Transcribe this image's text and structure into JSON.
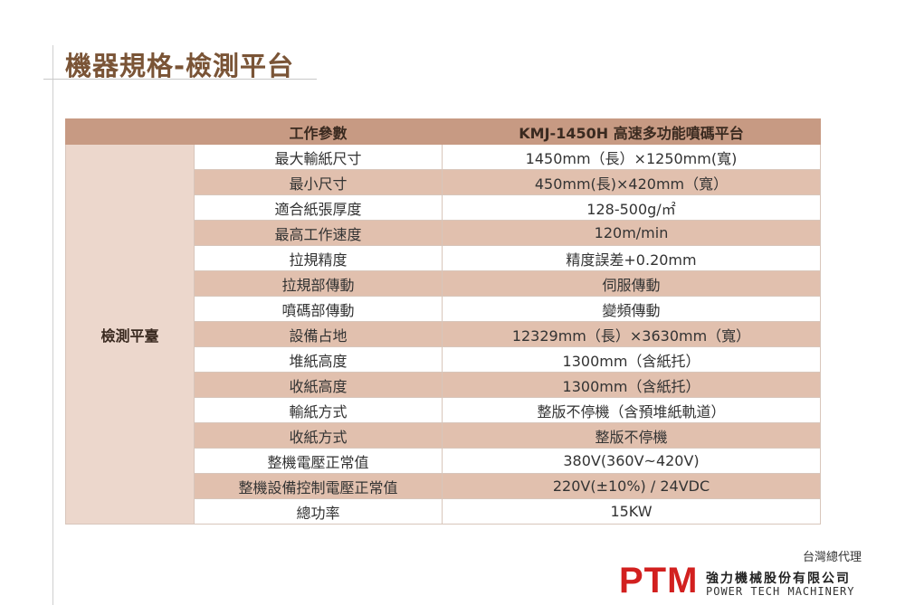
{
  "page": {
    "title": "機器規格-檢測平台"
  },
  "table": {
    "headers": [
      "",
      "工作參數",
      "KMJ-1450H 高速多功能噴碼平台"
    ],
    "group_label": "檢測平臺",
    "rows": [
      {
        "param": "最大輸紙尺寸",
        "value": "1450mm（長）×1250mm(寬)"
      },
      {
        "param": "最小尺寸",
        "value": "450mm(長)×420mm（寬）"
      },
      {
        "param": "適合紙張厚度",
        "value": "128-500g/㎡"
      },
      {
        "param": "最高工作速度",
        "value": "120m/min"
      },
      {
        "param": "拉規精度",
        "value": "精度誤差+0.20mm"
      },
      {
        "param": "拉規部傳動",
        "value": "伺服傳動"
      },
      {
        "param": "噴碼部傳動",
        "value": "變頻傳動"
      },
      {
        "param": "設備占地",
        "value": "12329mm（長）×3630mm（寬）"
      },
      {
        "param": "堆紙高度",
        "value": "1300mm（含紙托）"
      },
      {
        "param": "收紙高度",
        "value": "1300mm（含紙托）"
      },
      {
        "param": "輸紙方式",
        "value": "整版不停機（含預堆紙軌道）"
      },
      {
        "param": "收紙方式",
        "value": "整版不停機"
      },
      {
        "param": "整機電壓正常值",
        "value": "380V(360V~420V)"
      },
      {
        "param": "整機設備控制電壓正常值",
        "value": "220V(±10%) / 24VDC"
      },
      {
        "param": "總功率",
        "value": "15KW"
      }
    ]
  },
  "footer": {
    "agent_text": "台灣總代理",
    "logo_mark": "PTM",
    "company_zh": "強力機械股份有限公司",
    "company_en": "POWER TECH MACHINERY"
  },
  "colors": {
    "title": "#7a5436",
    "header_bg": "#c79a83",
    "group_bg": "#ecd7cc",
    "row_alt_bg": "#e1c0ae",
    "logo_red": "#d2201f"
  }
}
